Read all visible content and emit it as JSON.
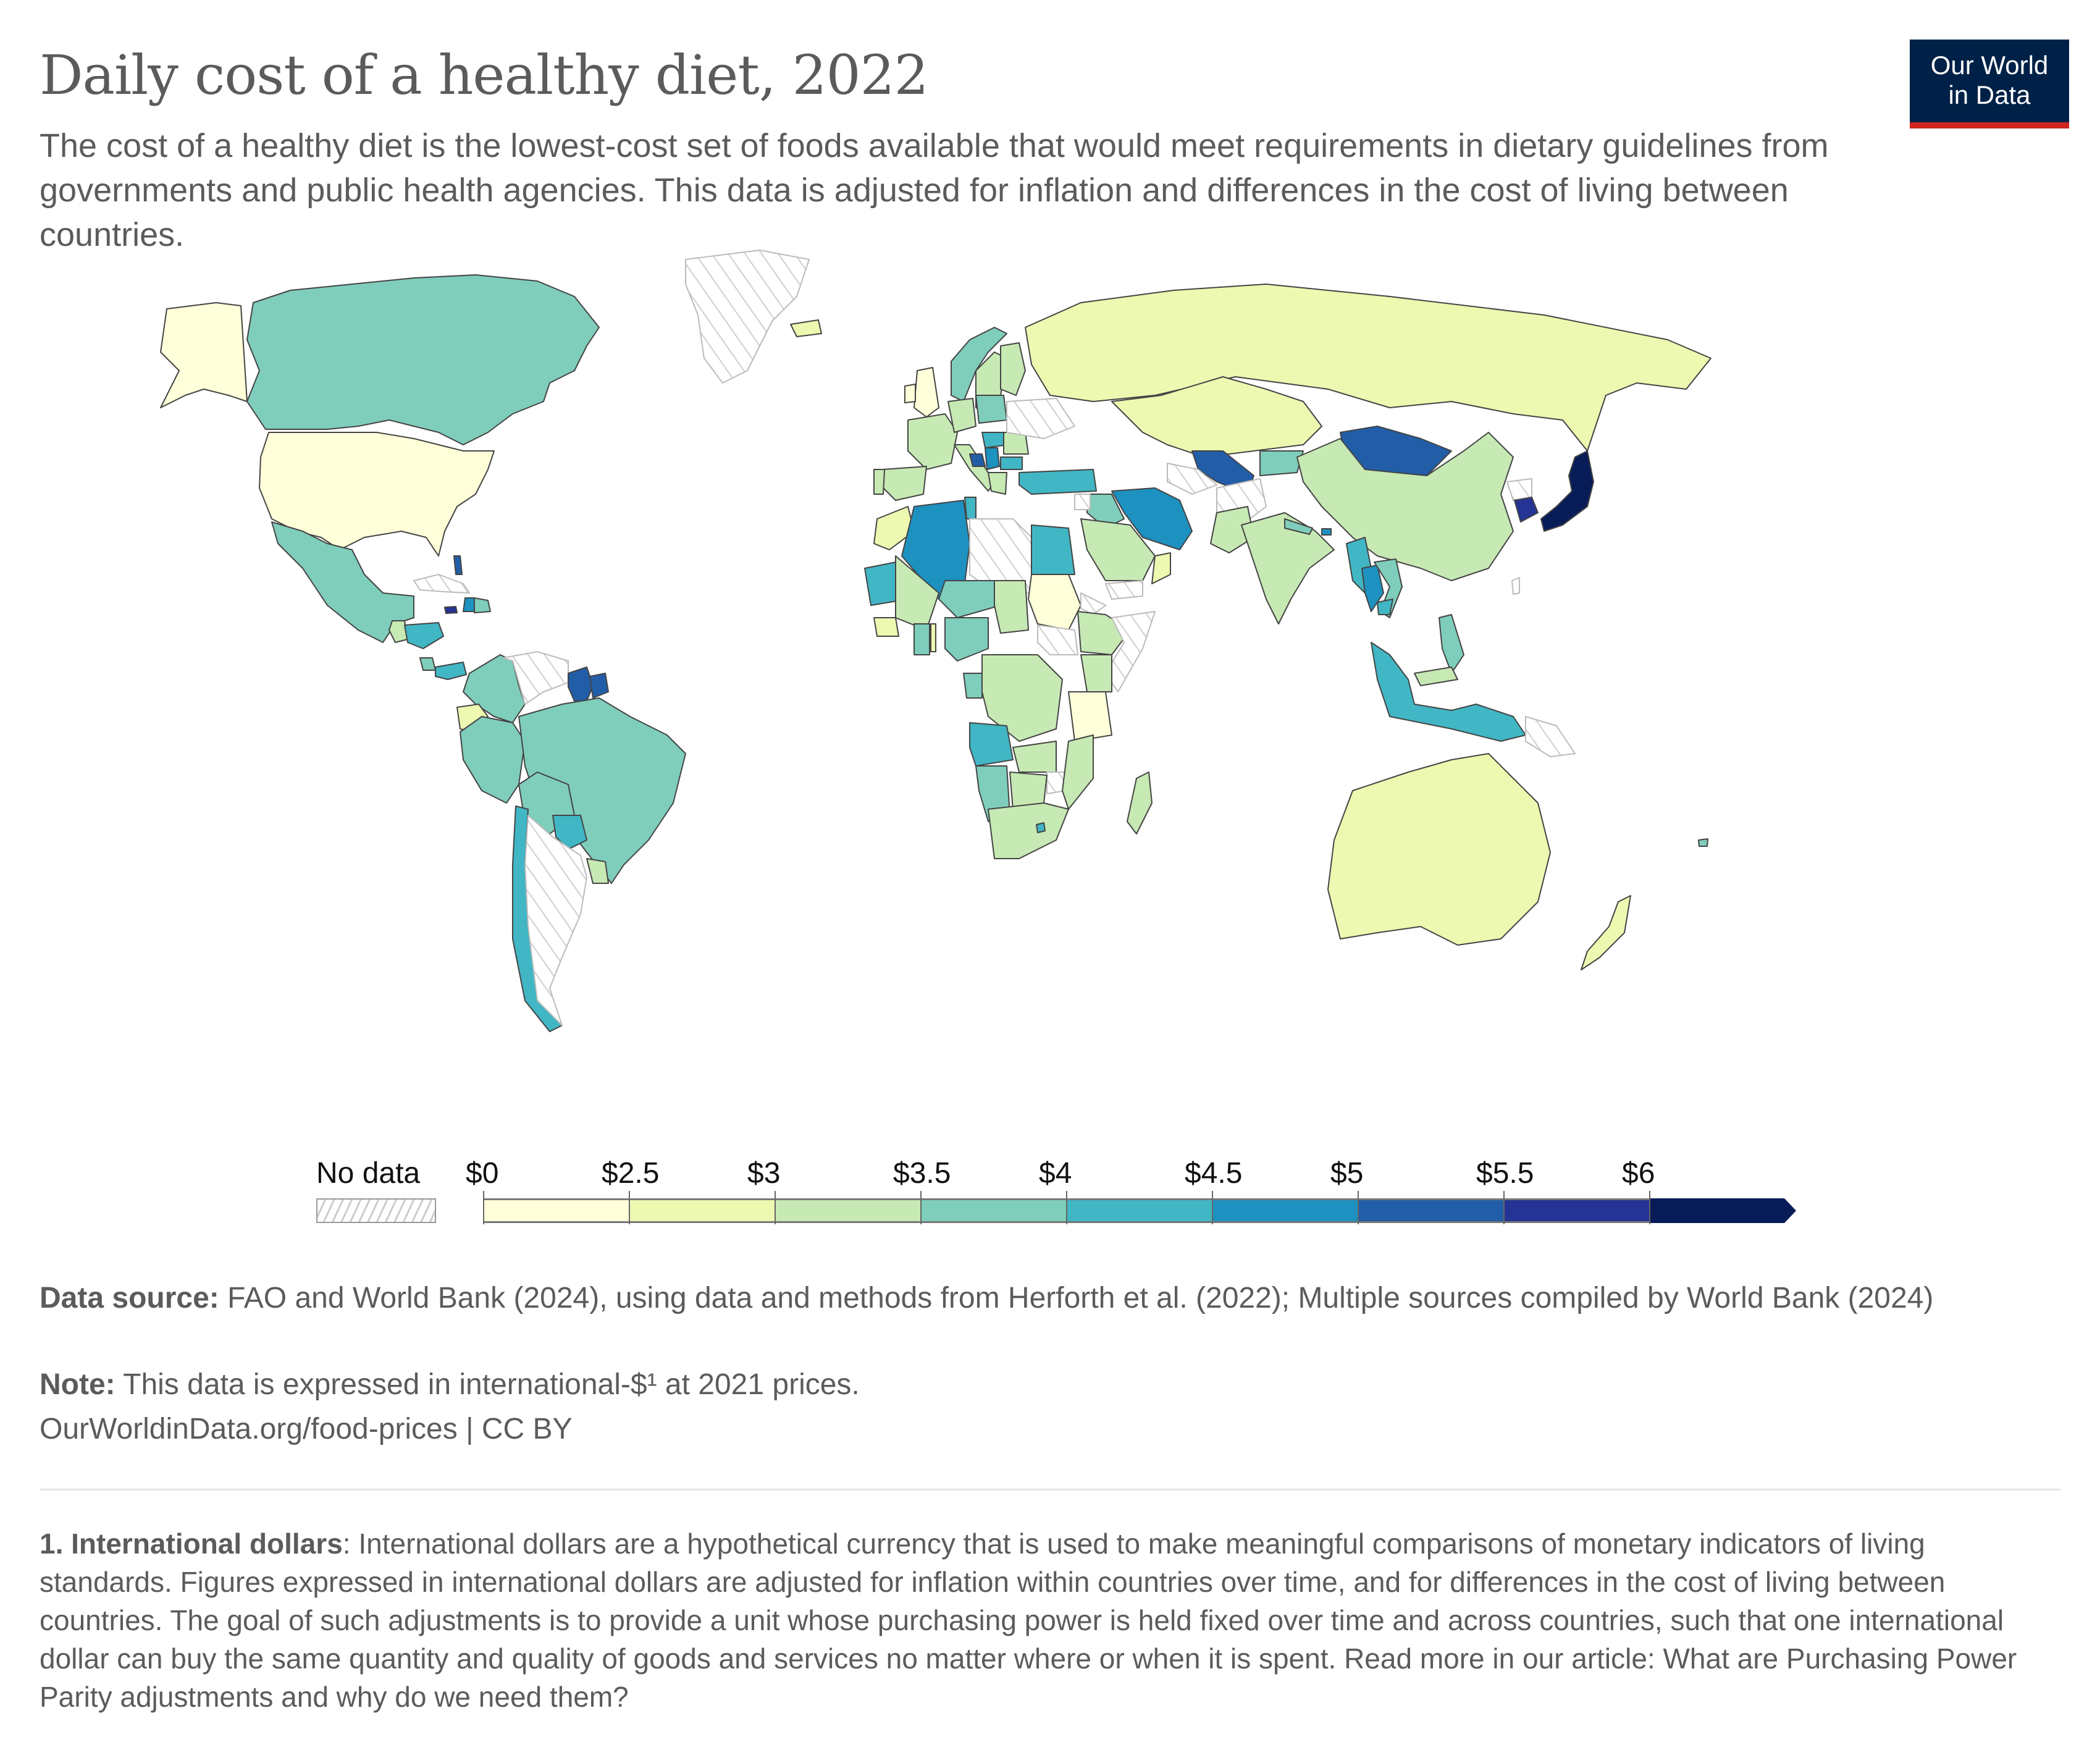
{
  "header": {
    "title": "Daily cost of a healthy diet, 2022",
    "subtitle": "The cost of a healthy diet is the lowest-cost set of foods available that would meet requirements in dietary guidelines from governments and public health agencies. This data is adjusted for inflation and differences in the cost of living between countries.",
    "logo_line1": "Our World",
    "logo_line2": "in Data"
  },
  "colors": {
    "logo_bg": "#002147",
    "logo_accent": "#ce261e",
    "no_data": "hatched-grey"
  },
  "chart_data": {
    "type": "heatmap",
    "subtype": "choropleth-world-map",
    "title": "Daily cost of a healthy diet, 2022",
    "unit": "international-$ per person per day (2021 prices)",
    "legend": {
      "no_data_label": "No data",
      "bins": [
        {
          "label": "$0",
          "from": 0,
          "to": 2.5,
          "color": "#ffffd9"
        },
        {
          "label": "$2.5",
          "from": 2.5,
          "to": 3,
          "color": "#edf8b1"
        },
        {
          "label": "$3",
          "from": 3,
          "to": 3.5,
          "color": "#c7e9b4"
        },
        {
          "label": "$3.5",
          "from": 3.5,
          "to": 4,
          "color": "#7fcdbb"
        },
        {
          "label": "$4",
          "from": 4,
          "to": 4.5,
          "color": "#41b6c4"
        },
        {
          "label": "$4.5",
          "from": 4.5,
          "to": 5,
          "color": "#1d91c0"
        },
        {
          "label": "$5",
          "from": 5,
          "to": 5.5,
          "color": "#225ea8"
        },
        {
          "label": "$5.5",
          "from": 5.5,
          "to": 6,
          "color": "#253494"
        },
        {
          "label": "$6",
          "from": 6,
          "to": null,
          "color": "#081d58"
        }
      ]
    },
    "regions": [
      {
        "name": "United States",
        "bin": "$0-2.5"
      },
      {
        "name": "Canada",
        "bin": "$3.5-4"
      },
      {
        "name": "Mexico",
        "bin": "$3.5-4"
      },
      {
        "name": "Greenland",
        "bin": "no data"
      },
      {
        "name": "Cuba",
        "bin": "no data"
      },
      {
        "name": "Guatemala",
        "bin": "$3-3.5"
      },
      {
        "name": "Honduras",
        "bin": "$4-4.5"
      },
      {
        "name": "Costa Rica",
        "bin": "$3.5-4"
      },
      {
        "name": "Panama",
        "bin": "$4-4.5"
      },
      {
        "name": "Jamaica",
        "bin": "$5.5-6"
      },
      {
        "name": "Haiti",
        "bin": "$4.5-5"
      },
      {
        "name": "Dominican Republic",
        "bin": "$3.5-4"
      },
      {
        "name": "Bahamas",
        "bin": "$5-5.5"
      },
      {
        "name": "Colombia",
        "bin": "$3.5-4"
      },
      {
        "name": "Venezuela",
        "bin": "no data"
      },
      {
        "name": "Guyana",
        "bin": "$5-5.5"
      },
      {
        "name": "Suriname",
        "bin": "$5-5.5"
      },
      {
        "name": "Ecuador",
        "bin": "$2.5-3"
      },
      {
        "name": "Peru",
        "bin": "$3.5-4"
      },
      {
        "name": "Brazil",
        "bin": "$3.5-4"
      },
      {
        "name": "Bolivia",
        "bin": "$3.5-4"
      },
      {
        "name": "Paraguay",
        "bin": "$4-4.5"
      },
      {
        "name": "Chile",
        "bin": "$4-4.5"
      },
      {
        "name": "Argentina",
        "bin": "no data"
      },
      {
        "name": "Uruguay",
        "bin": "$3-3.5"
      },
      {
        "name": "Iceland",
        "bin": "$2.5-3"
      },
      {
        "name": "United Kingdom",
        "bin": "$0-2.5"
      },
      {
        "name": "Ireland",
        "bin": "$0-2.5"
      },
      {
        "name": "Norway",
        "bin": "$3.5-4"
      },
      {
        "name": "Sweden",
        "bin": "$3-3.5"
      },
      {
        "name": "Finland",
        "bin": "$3-3.5"
      },
      {
        "name": "France",
        "bin": "$3-3.5"
      },
      {
        "name": "Spain",
        "bin": "$3-3.5"
      },
      {
        "name": "Portugal",
        "bin": "$3-3.5"
      },
      {
        "name": "Germany",
        "bin": "$3-3.5"
      },
      {
        "name": "Poland",
        "bin": "$3.5-4"
      },
      {
        "name": "Italy",
        "bin": "$3-3.5"
      },
      {
        "name": "Hungary",
        "bin": "$4-4.5"
      },
      {
        "name": "Bosnia and Herzegovina",
        "bin": "$5-5.5"
      },
      {
        "name": "Serbia",
        "bin": "$4.5-5"
      },
      {
        "name": "Bulgaria",
        "bin": "$4-4.5"
      },
      {
        "name": "Romania",
        "bin": "$3-3.5"
      },
      {
        "name": "Ukraine",
        "bin": "no data"
      },
      {
        "name": "Greece",
        "bin": "$3-3.5"
      },
      {
        "name": "Turkey",
        "bin": "$4-4.5"
      },
      {
        "name": "Russia",
        "bin": "$2.5-3"
      },
      {
        "name": "Kazakhstan",
        "bin": "$2.5-3"
      },
      {
        "name": "Uzbekistan",
        "bin": "$5-5.5"
      },
      {
        "name": "Kyrgyzstan",
        "bin": "$3.5-4"
      },
      {
        "name": "Turkmenistan",
        "bin": "no data"
      },
      {
        "name": "Afghanistan",
        "bin": "no data"
      },
      {
        "name": "Mongolia",
        "bin": "$5-5.5"
      },
      {
        "name": "China",
        "bin": "$3-3.5"
      },
      {
        "name": "North Korea",
        "bin": "no data"
      },
      {
        "name": "South Korea",
        "bin": "$5.5-6"
      },
      {
        "name": "Japan",
        "bin": "$6+"
      },
      {
        "name": "Taiwan",
        "bin": "no data"
      },
      {
        "name": "Iran",
        "bin": "$4.5-5"
      },
      {
        "name": "Iraq",
        "bin": "$3.5-4"
      },
      {
        "name": "Syria",
        "bin": "no data"
      },
      {
        "name": "Saudi Arabia",
        "bin": "$3-3.5"
      },
      {
        "name": "Yemen",
        "bin": "no data"
      },
      {
        "name": "Oman",
        "bin": "$2.5-3"
      },
      {
        "name": "India",
        "bin": "$3-3.5"
      },
      {
        "name": "Pakistan",
        "bin": "$3-3.5"
      },
      {
        "name": "Nepal",
        "bin": "$3.5-4"
      },
      {
        "name": "Bhutan",
        "bin": "$4.5-5"
      },
      {
        "name": "Myanmar",
        "bin": "$4-4.5"
      },
      {
        "name": "Thailand",
        "bin": "$4.5-5"
      },
      {
        "name": "Vietnam",
        "bin": "$3.5-4"
      },
      {
        "name": "Cambodia",
        "bin": "$4-4.5"
      },
      {
        "name": "Philippines",
        "bin": "$3.5-4"
      },
      {
        "name": "Malaysia",
        "bin": "$3-3.5"
      },
      {
        "name": "Indonesia",
        "bin": "$4-4.5"
      },
      {
        "name": "Papua New Guinea",
        "bin": "no data"
      },
      {
        "name": "Australia",
        "bin": "$2.5-3"
      },
      {
        "name": "New Zealand",
        "bin": "$2.5-3"
      },
      {
        "name": "Fiji",
        "bin": "$3.5-4"
      },
      {
        "name": "Morocco",
        "bin": "$2.5-3"
      },
      {
        "name": "Algeria",
        "bin": "$4.5-5"
      },
      {
        "name": "Tunisia",
        "bin": "$4-4.5"
      },
      {
        "name": "Libya",
        "bin": "no data"
      },
      {
        "name": "Egypt",
        "bin": "$4-4.5"
      },
      {
        "name": "Sudan",
        "bin": "$0-2.5"
      },
      {
        "name": "South Sudan",
        "bin": "no data"
      },
      {
        "name": "Somalia",
        "bin": "no data"
      },
      {
        "name": "Eritrea",
        "bin": "no data"
      },
      {
        "name": "Ethiopia",
        "bin": "$3-3.5"
      },
      {
        "name": "Kenya",
        "bin": "$3-3.5"
      },
      {
        "name": "Tanzania",
        "bin": "$0-2.5"
      },
      {
        "name": "Mauritania",
        "bin": "$4-4.5"
      },
      {
        "name": "Mali",
        "bin": "$3-3.5"
      },
      {
        "name": "Niger",
        "bin": "$3.5-4"
      },
      {
        "name": "Nigeria",
        "bin": "$3.5-4"
      },
      {
        "name": "Chad",
        "bin": "$3-3.5"
      },
      {
        "name": "Guinea",
        "bin": "$2.5-3"
      },
      {
        "name": "Ghana",
        "bin": "$3.5-4"
      },
      {
        "name": "Togo",
        "bin": "$2.5-3"
      },
      {
        "name": "Gabon",
        "bin": "$3.5-4"
      },
      {
        "name": "DR Congo",
        "bin": "$3-3.5"
      },
      {
        "name": "Angola",
        "bin": "$4-4.5"
      },
      {
        "name": "Namibia",
        "bin": "$3.5-4"
      },
      {
        "name": "Botswana",
        "bin": "$3-3.5"
      },
      {
        "name": "Zimbabwe",
        "bin": "no data"
      },
      {
        "name": "Zambia",
        "bin": "$3-3.5"
      },
      {
        "name": "Mozambique",
        "bin": "$3-3.5"
      },
      {
        "name": "South Africa",
        "bin": "$3-3.5"
      },
      {
        "name": "Lesotho",
        "bin": "$4-4.5"
      },
      {
        "name": "Madagascar",
        "bin": "$3-3.5"
      }
    ]
  },
  "footer": {
    "source_label": "Data source:",
    "source_text": " FAO and World Bank (2024), using data and methods from Herforth et al. (2022); Multiple sources compiled by World Bank (2024)",
    "note_label": "Note:",
    "note_text": " This data is expressed in international-$¹ at 2021 prices.",
    "url_text": "OurWorldinData.org/food-prices | CC BY"
  },
  "footnote": {
    "label": "1. International dollars",
    "text": ": International dollars are a hypothetical currency that is used to make meaningful comparisons of monetary indicators of living standards. Figures expressed in international dollars are adjusted for inflation within countries over time, and for differences in the cost of living between countries. The goal of such adjustments is to provide a unit whose purchasing power is held fixed over time and across countries, such that one international dollar can buy the same quantity and quality of goods and services no matter where or when it is spent. Read more in our article: What are Purchasing Power Parity adjustments and why do we need them?"
  }
}
